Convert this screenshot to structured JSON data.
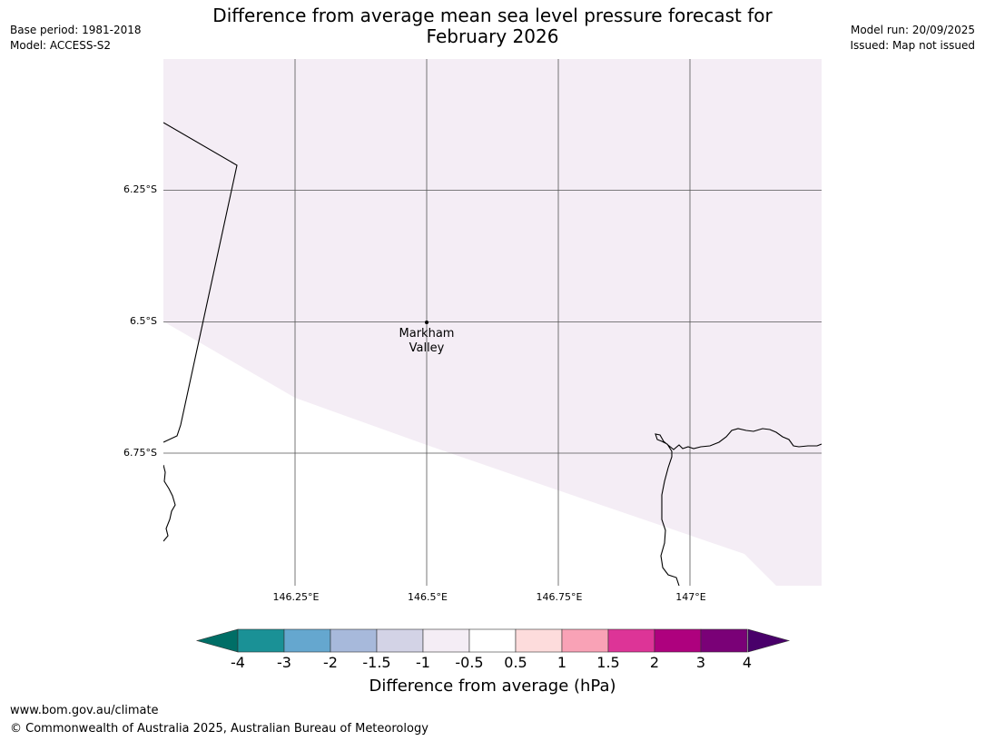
{
  "header": {
    "title_line1": "Difference from average mean sea level pressure forecast for",
    "title_line2": "February 2026",
    "base_period": "Base period: 1981-2018",
    "model": "Model: ACCESS-S2",
    "model_run": "Model run: 20/09/2025",
    "issued": "Issued: Map not issued"
  },
  "map": {
    "lat_labels": [
      "6.25°S",
      "6.5°S",
      "6.75°S"
    ],
    "lon_labels": [
      "146.25°E",
      "146.5°E",
      "146.75°E",
      "147°E"
    ],
    "place": {
      "line1": "Markham",
      "line2": "Valley"
    },
    "anomaly_fill_color": "#f4edf5",
    "anomaly_bin": "-1 to -0.5"
  },
  "colorbar": {
    "ticks": [
      "-4",
      "-3",
      "-2",
      "-1.5",
      "-1",
      "-0.5",
      "0.5",
      "1",
      "1.5",
      "2",
      "3",
      "4"
    ],
    "colors": [
      "#006e66",
      "#1a9196",
      "#65a7cf",
      "#a7b9db",
      "#d3d3e6",
      "#f4edf5",
      "#ffffff",
      "#fddcdc",
      "#f9a2b6",
      "#dd3497",
      "#ae017e",
      "#7a0177",
      "#49006a"
    ],
    "title": "Difference from average (hPa)"
  },
  "footer": {
    "url": "www.bom.gov.au/climate",
    "copyright": "© Commonwealth of Australia 2025, Australian Bureau of Meteorology"
  }
}
